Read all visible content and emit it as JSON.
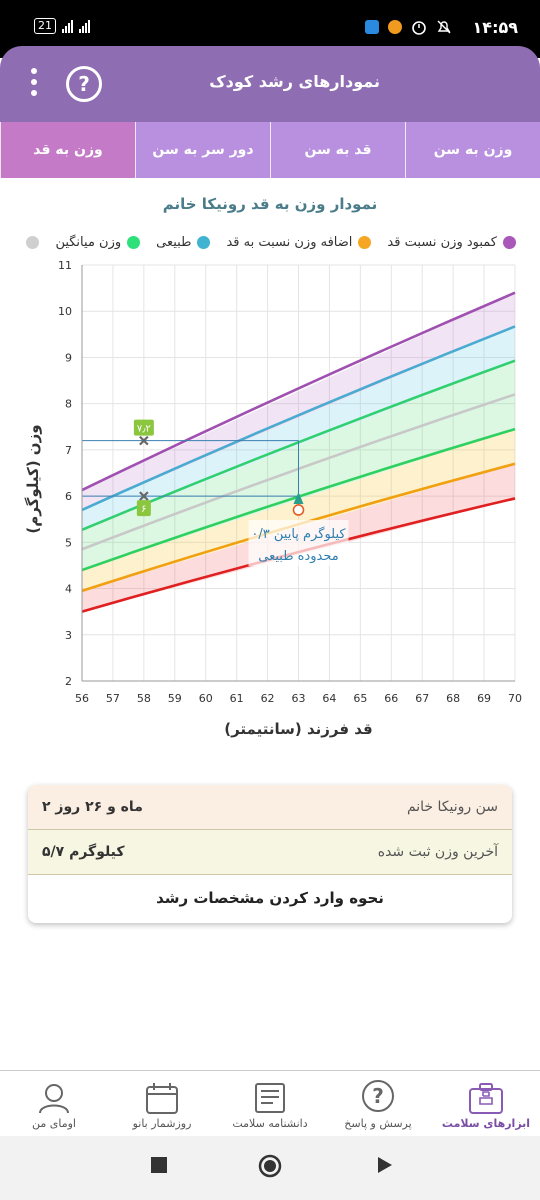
{
  "status": {
    "time": "۱۴:۵۹",
    "battery": "21"
  },
  "header": {
    "title": "نمودارهای رشد کودک",
    "help_label": "?"
  },
  "tabs": [
    {
      "label": "وزن به سن"
    },
    {
      "label": "قد به سن"
    },
    {
      "label": "دور سر به سن"
    },
    {
      "label": "وزن به قد",
      "active": true
    }
  ],
  "chart": {
    "title": "نمودار وزن به قد رونیکا خانم",
    "legend": [
      {
        "label": "کمبود وزن نسبت قد",
        "color": "#a957b8"
      },
      {
        "label": "اضافه وزن نسبت به قد",
        "color": "#f5a623"
      },
      {
        "label": "طبیعی",
        "color": "#3fb3cf"
      },
      {
        "label": "وزن میانگین",
        "color": "#2ee07a"
      },
      {
        "label": "",
        "color": "#cfcfcf"
      }
    ],
    "ylabel": "وزن (کیلوگرم)",
    "xlabel": "قد فرزند (سانتیمتر)",
    "annotation_line1": "۰/۳ کیلوگرم پایین",
    "annotation_line2": "محدوده طبیعی",
    "marker_high_label": "۷٫۲",
    "marker_low_label": "۶"
  },
  "chart_data": {
    "type": "line",
    "x": [
      56,
      70
    ],
    "xlim": [
      56,
      70
    ],
    "ylim": [
      2,
      11
    ],
    "xticks": [
      56,
      57,
      58,
      59,
      60,
      61,
      62,
      63,
      64,
      65,
      66,
      67,
      68,
      69,
      70
    ],
    "yticks": [
      2,
      3,
      4,
      5,
      6,
      7,
      8,
      9,
      10,
      11
    ],
    "grid": true,
    "series": [
      {
        "name": "curve-red",
        "color": "#e02020",
        "values": [
          3.5,
          5.95
        ]
      },
      {
        "name": "curve-orange",
        "color": "#f0a010",
        "values": [
          3.95,
          6.7
        ]
      },
      {
        "name": "curve-green",
        "color": "#30d060",
        "values": [
          4.4,
          7.45
        ]
      },
      {
        "name": "curve-grey",
        "color": "#c8c8c8",
        "values": [
          4.85,
          8.2
        ]
      },
      {
        "name": "curve-green-upper",
        "color": "#30d070",
        "values": [
          5.27,
          8.93
        ]
      },
      {
        "name": "curve-blue",
        "color": "#4aabd0",
        "values": [
          5.7,
          9.67
        ]
      },
      {
        "name": "curve-purple",
        "color": "#a050b0",
        "values": [
          6.13,
          10.4
        ]
      }
    ],
    "fills": [
      {
        "color": "rgba(240,80,80,0.20)"
      },
      {
        "color": "rgba(250,200,60,0.25)"
      },
      {
        "color": "rgba(80,220,110,0.20)"
      },
      {
        "color": "rgba(80,220,110,0.20)"
      },
      {
        "color": "rgba(100,200,230,0.22)"
      },
      {
        "color": "rgba(190,130,210,0.22)"
      }
    ],
    "points": [
      {
        "name": "current-weight",
        "x": 63,
        "y": 5.7
      },
      {
        "name": "normal-min",
        "x": 58,
        "y": 6.0
      },
      {
        "name": "normal-max",
        "x": 58,
        "y": 7.2
      }
    ],
    "reference_lines": [
      {
        "y": 6.0,
        "from_x": 56,
        "to_x": 63
      },
      {
        "y": 7.2,
        "from_x": 56,
        "to_x": 63
      }
    ]
  },
  "info": {
    "age_label": "سن رونیکا خانم",
    "age_value": "۲ ماه و ۲۶ روز",
    "weight_label": "آخرین وزن ثبت شده",
    "weight_value": "۵/۷ کیلوگرم",
    "guide_link": "نحوه وارد کردن مشخصات رشد"
  },
  "bottom_nav": [
    {
      "label": "ابزارهای سلامت",
      "icon": "medical-kit-icon",
      "active": true
    },
    {
      "label": "پرسش و پاسخ",
      "icon": "question-bubble-icon"
    },
    {
      "label": "دانشنامه سلامت",
      "icon": "encyclopedia-icon"
    },
    {
      "label": "روزشمار بانو",
      "icon": "calendar-icon"
    },
    {
      "label": "اومای من",
      "icon": "profile-icon"
    }
  ]
}
